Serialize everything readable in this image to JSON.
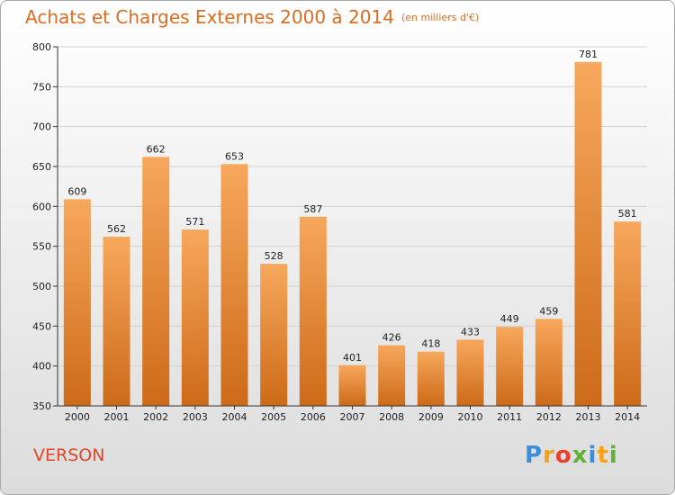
{
  "header": {
    "title": "Achats et Charges Externes 2000 à 2014",
    "subtitle": "(en milliers d'€)"
  },
  "footer": {
    "town": "VERSON",
    "logo_letters": [
      "P",
      "r",
      "o",
      "x",
      "i",
      "t",
      "i"
    ],
    "logo_colors": [
      "#3a8fd8",
      "#f4a21c",
      "#e8412c",
      "#5fb233",
      "#3a8fd8",
      "#f4a21c",
      "#5fb233"
    ]
  },
  "colors": {
    "bar_top": "#f7a85c",
    "bar_bottom": "#cd6a18",
    "title": "#d96d22",
    "town": "#e0472a"
  },
  "chart_data": {
    "type": "bar",
    "title": "Achats et Charges Externes 2000 à 2014",
    "subtitle": "(en milliers d'€)",
    "categories": [
      "2000",
      "2001",
      "2002",
      "2003",
      "2004",
      "2005",
      "2006",
      "2007",
      "2008",
      "2009",
      "2010",
      "2011",
      "2012",
      "2013",
      "2014"
    ],
    "values": [
      609,
      562,
      662,
      571,
      653,
      528,
      587,
      401,
      426,
      418,
      433,
      449,
      459,
      781,
      581
    ],
    "ylim": [
      350,
      800
    ],
    "yticks": [
      350,
      400,
      450,
      500,
      550,
      600,
      650,
      700,
      750,
      800
    ],
    "grid": true
  }
}
